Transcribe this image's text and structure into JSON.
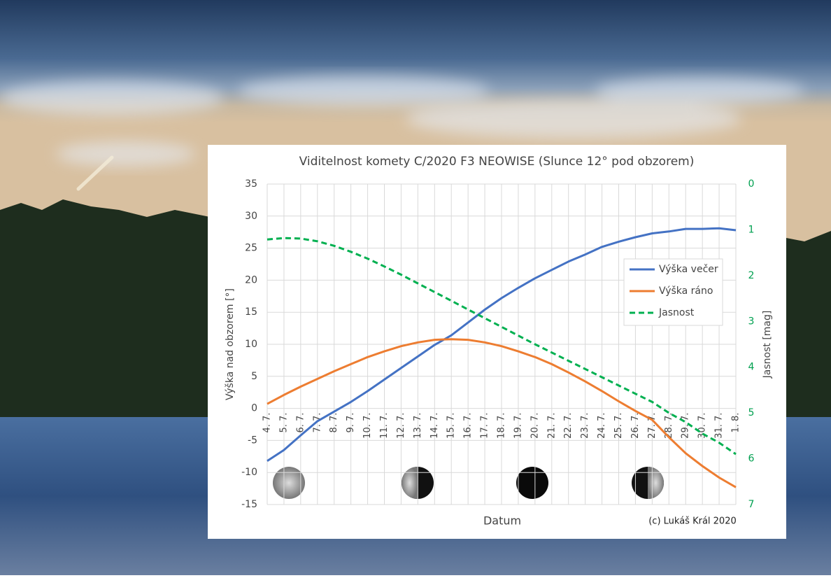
{
  "chart_data": {
    "type": "line",
    "title": "Viditelnost komety C/2020 F3 NEOWISE (Slunce 12° pod obzorem)",
    "x_label": "Datum",
    "y_label": "Výška nad obzorem [°]",
    "y2_label": "Jasnost [mag]",
    "credit": "(c) Lukáš Král 2020",
    "categories": [
      "4. 7.",
      "5. 7.",
      "6. 7.",
      "7. 7.",
      "8. 7.",
      "9. 7.",
      "10. 7.",
      "11. 7.",
      "12. 7.",
      "13. 7.",
      "14. 7.",
      "15. 7.",
      "16. 7.",
      "17. 7.",
      "18. 7.",
      "19. 7.",
      "20. 7.",
      "21. 7.",
      "22. 7.",
      "23. 7.",
      "24. 7.",
      "25. 7.",
      "26. 7.",
      "27. 7.",
      "28. 7.",
      "29. 7.",
      "30. 7.",
      "31. 7.",
      "1. 8."
    ],
    "series": [
      {
        "name": "Výška večer",
        "color": "#4472c4",
        "values": [
          -8.2,
          -6.5,
          -4.2,
          -2.0,
          -0.5,
          1.0,
          2.7,
          4.5,
          6.3,
          8.1,
          9.9,
          11.4,
          13.4,
          15.4,
          17.2,
          18.8,
          20.3,
          21.6,
          22.9,
          24.0,
          25.2,
          26.0,
          26.7,
          27.3,
          27.6,
          28.0,
          28.0,
          28.1,
          27.8
        ]
      },
      {
        "name": "Výška ráno",
        "color": "#ed7d31",
        "values": [
          0.7,
          2.1,
          3.4,
          4.6,
          5.8,
          6.9,
          8.0,
          8.9,
          9.7,
          10.3,
          10.7,
          10.8,
          10.7,
          10.3,
          9.7,
          8.9,
          8.0,
          6.9,
          5.6,
          4.2,
          2.7,
          1.1,
          -0.4,
          -1.8,
          -4.5,
          -7.0,
          -9.0,
          -10.8,
          -12.3
        ]
      },
      {
        "name": "Jasnost",
        "color": "#00b050",
        "dashed": true,
        "axis": "y2",
        "values": [
          1.21,
          1.18,
          1.19,
          1.25,
          1.35,
          1.48,
          1.63,
          1.8,
          1.98,
          2.17,
          2.36,
          2.55,
          2.74,
          2.93,
          3.12,
          3.31,
          3.5,
          3.68,
          3.86,
          4.04,
          4.22,
          4.4,
          4.58,
          4.76,
          5.0,
          5.2,
          5.45,
          5.65,
          5.9
        ]
      }
    ],
    "ylim": [
      -15,
      35
    ],
    "yticks": [
      -15,
      -10,
      -5,
      0,
      5,
      10,
      15,
      20,
      25,
      30,
      35
    ],
    "y2lim": [
      7,
      0
    ],
    "y2ticks": [
      0,
      1,
      2,
      3,
      4,
      5,
      6,
      7
    ],
    "y2_color": "#00a050",
    "grid": true,
    "legend": "right"
  }
}
